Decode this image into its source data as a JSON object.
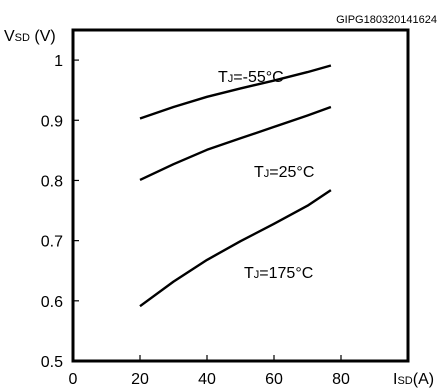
{
  "chart_data": {
    "type": "line",
    "figure_code": "GIPG180320141624",
    "ylabel": {
      "main": "V",
      "sub": "SD",
      "unit": " (V)"
    },
    "xlabel": {
      "main": "I",
      "sub": "SD",
      "unit": "(A)"
    },
    "xlim": [
      0,
      100
    ],
    "ylim": [
      0.5,
      1.05
    ],
    "x_ticks": [
      0,
      20,
      40,
      60,
      80
    ],
    "y_ticks": [
      0.5,
      0.6,
      0.7,
      0.8,
      0.9,
      1
    ],
    "y_tick_labels": [
      "0.5",
      "0.6",
      "0.7",
      "0.8",
      "0.9",
      "1"
    ],
    "grid": false,
    "series": [
      {
        "name": "TJ=-55°C",
        "label": {
          "main": "T",
          "sub": "J",
          "rest": "=-55°C"
        },
        "points": [
          [
            20,
            0.903
          ],
          [
            30,
            0.922
          ],
          [
            40,
            0.939
          ],
          [
            50,
            0.953
          ],
          [
            60,
            0.966
          ],
          [
            70,
            0.98
          ],
          [
            77,
            0.991
          ]
        ]
      },
      {
        "name": "TJ=25°C",
        "label": {
          "main": "T",
          "sub": "J",
          "rest": "=25°C"
        },
        "points": [
          [
            20,
            0.801
          ],
          [
            30,
            0.827
          ],
          [
            40,
            0.851
          ],
          [
            50,
            0.87
          ],
          [
            60,
            0.889
          ],
          [
            70,
            0.908
          ],
          [
            77,
            0.922
          ]
        ]
      },
      {
        "name": "TJ=175°C",
        "label": {
          "main": "T",
          "sub": "J",
          "rest": "=175°C"
        },
        "points": [
          [
            20,
            0.591
          ],
          [
            30,
            0.632
          ],
          [
            40,
            0.668
          ],
          [
            50,
            0.699
          ],
          [
            60,
            0.728
          ],
          [
            70,
            0.758
          ],
          [
            77,
            0.784
          ]
        ]
      }
    ]
  }
}
